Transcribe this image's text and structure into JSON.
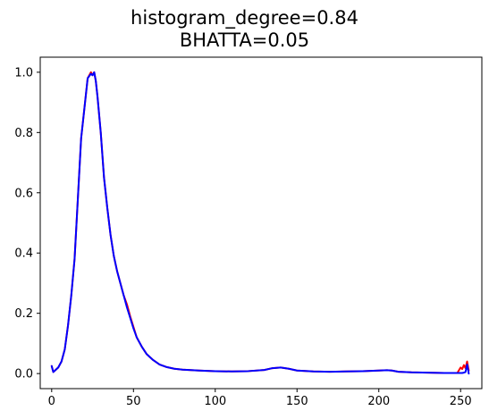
{
  "title": {
    "line1": "histogram_degree=0.84",
    "line2": "BHATTA=0.05"
  },
  "chart_data": {
    "type": "line",
    "title": "histogram_degree=0.84\nBHATTA=0.05",
    "xlabel": "",
    "ylabel": "",
    "xlim": [
      -7,
      263
    ],
    "ylim": [
      -0.05,
      1.05
    ],
    "grid": false,
    "x_ticks": [
      0,
      50,
      100,
      150,
      200,
      250
    ],
    "y_ticks": [
      0.0,
      0.2,
      0.4,
      0.6,
      0.8,
      1.0
    ],
    "x_tick_labels": [
      "0",
      "50",
      "100",
      "150",
      "200",
      "250"
    ],
    "y_tick_labels": [
      "0.0",
      "0.2",
      "0.4",
      "0.6",
      "0.8",
      "1.0"
    ],
    "series": [
      {
        "color": "#ff0000",
        "x": [
          0,
          1,
          2,
          4,
          6,
          8,
          10,
          12,
          14,
          16,
          18,
          20,
          22,
          24,
          25,
          26,
          27,
          28,
          30,
          32,
          34,
          36,
          38,
          40,
          42,
          44,
          46,
          48,
          50,
          52,
          55,
          58,
          62,
          66,
          70,
          75,
          80,
          90,
          100,
          110,
          120,
          130,
          135,
          140,
          145,
          150,
          160,
          170,
          180,
          190,
          200,
          205,
          208,
          212,
          220,
          230,
          240,
          248,
          250,
          251,
          252,
          253,
          254,
          255
        ],
        "values": [
          0.025,
          0.005,
          0.01,
          0.02,
          0.04,
          0.08,
          0.16,
          0.26,
          0.38,
          0.58,
          0.78,
          0.88,
          0.98,
          1.0,
          0.99,
          1.0,
          0.97,
          0.92,
          0.8,
          0.65,
          0.55,
          0.46,
          0.39,
          0.34,
          0.3,
          0.26,
          0.23,
          0.19,
          0.155,
          0.12,
          0.09,
          0.065,
          0.045,
          0.03,
          0.022,
          0.016,
          0.013,
          0.01,
          0.008,
          0.007,
          0.008,
          0.012,
          0.018,
          0.02,
          0.016,
          0.01,
          0.007,
          0.006,
          0.007,
          0.008,
          0.01,
          0.011,
          0.01,
          0.006,
          0.004,
          0.003,
          0.002,
          0.002,
          0.02,
          0.015,
          0.028,
          0.018,
          0.04,
          0.01
        ]
      },
      {
        "color": "#0000ff",
        "x": [
          0,
          1,
          2,
          4,
          6,
          8,
          10,
          12,
          14,
          16,
          18,
          20,
          22,
          24,
          25,
          26,
          27,
          28,
          30,
          32,
          34,
          36,
          38,
          40,
          42,
          44,
          46,
          48,
          50,
          52,
          55,
          58,
          62,
          66,
          70,
          75,
          80,
          90,
          100,
          110,
          120,
          130,
          135,
          140,
          145,
          150,
          160,
          170,
          180,
          190,
          200,
          205,
          208,
          212,
          220,
          230,
          240,
          248,
          250,
          251,
          252,
          253,
          254,
          255
        ],
        "values": [
          0.025,
          0.005,
          0.01,
          0.02,
          0.04,
          0.08,
          0.16,
          0.26,
          0.38,
          0.58,
          0.78,
          0.88,
          0.98,
          0.995,
          0.99,
          1.0,
          0.97,
          0.92,
          0.8,
          0.65,
          0.55,
          0.46,
          0.39,
          0.34,
          0.3,
          0.26,
          0.22,
          0.185,
          0.15,
          0.12,
          0.09,
          0.065,
          0.045,
          0.03,
          0.022,
          0.016,
          0.013,
          0.01,
          0.008,
          0.007,
          0.008,
          0.012,
          0.018,
          0.02,
          0.016,
          0.01,
          0.007,
          0.006,
          0.007,
          0.008,
          0.01,
          0.011,
          0.01,
          0.006,
          0.004,
          0.003,
          0.002,
          0.002,
          0.002,
          0.002,
          0.003,
          0.005,
          0.03,
          0.0
        ]
      }
    ]
  }
}
